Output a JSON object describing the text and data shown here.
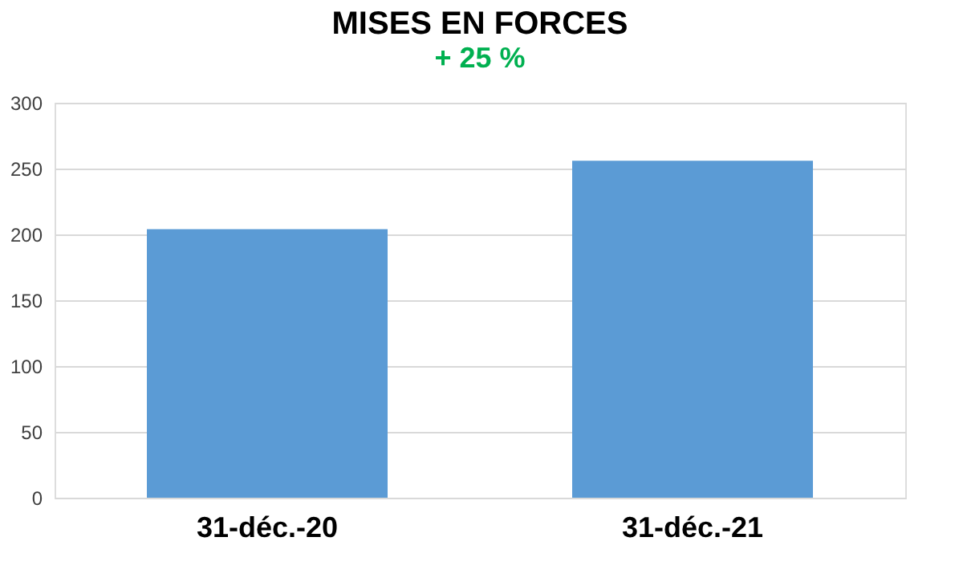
{
  "chart_data": {
    "type": "bar",
    "title": "MISES EN FORCES",
    "subtitle": "+ 25 %",
    "categories": [
      "31-déc.-20",
      "31-déc.-21"
    ],
    "series": [
      {
        "color": "#5b9bd5",
        "values": [
          204,
          256
        ]
      }
    ],
    "ylim": [
      0,
      300
    ],
    "yticks": [
      0,
      50,
      100,
      150,
      200,
      250,
      300
    ],
    "grid": "y"
  }
}
